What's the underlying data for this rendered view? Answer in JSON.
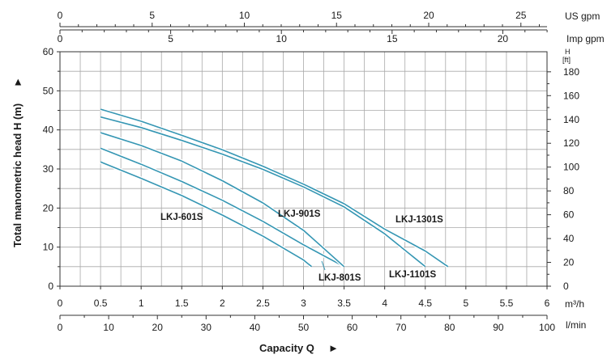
{
  "chart_data": {
    "type": "line",
    "title": "",
    "xlabel": "Capacity Q",
    "ylabel": "Total manometric head H (m)",
    "axis_arrow": "►",
    "x_unit_primary": "m³/h",
    "x_unit_secondary": "l/min",
    "y_unit_right_top": "H",
    "y_unit_right": "[ft]",
    "top_axis_1_unit": "US gpm",
    "top_axis_2_unit": "Imp gpm",
    "xlim": [
      0,
      6
    ],
    "ylim": [
      0,
      60
    ],
    "x_ticks": [
      "0",
      "0.5",
      "1",
      "1.5",
      "2",
      "2.5",
      "3",
      "3.5",
      "4",
      "4.5",
      "5",
      "5.5",
      "6"
    ],
    "lmin_ticks": [
      "0",
      "10",
      "20",
      "30",
      "40",
      "50",
      "60",
      "70",
      "80",
      "90",
      "100"
    ],
    "y_ticks": [
      "0",
      "10",
      "20",
      "30",
      "40",
      "50",
      "60"
    ],
    "ft_ticks": [
      "0",
      "20",
      "40",
      "60",
      "80",
      "100",
      "120",
      "140",
      "160",
      "180"
    ],
    "usgpm_ticks": [
      "0",
      "5",
      "10",
      "15",
      "20",
      "25"
    ],
    "impgpm_ticks": [
      "0",
      "5",
      "10",
      "15",
      "20"
    ],
    "grid": true,
    "series": [
      {
        "name": "LKJ-601S",
        "x": [
          0.5,
          1.0,
          1.5,
          2.0,
          2.5,
          3.0,
          3.1
        ],
        "y": [
          31.8,
          27.6,
          23.2,
          18.2,
          12.8,
          6.7,
          5.0
        ]
      },
      {
        "name": "LKJ-801S",
        "x": [
          0.5,
          1.0,
          1.5,
          2.0,
          2.5,
          3.0,
          3.5
        ],
        "y": [
          35.3,
          31.2,
          26.8,
          22.0,
          16.6,
          10.6,
          5.0
        ]
      },
      {
        "name": "LKJ-901S",
        "x": [
          0.5,
          1.0,
          1.5,
          2.0,
          2.5,
          3.0,
          3.5
        ],
        "y": [
          39.3,
          36.0,
          32.0,
          27.0,
          21.3,
          14.3,
          5.0
        ]
      },
      {
        "name": "LKJ-1101S",
        "x": [
          0.5,
          1.0,
          1.5,
          2.0,
          2.5,
          3.0,
          3.5,
          4.0,
          4.5
        ],
        "y": [
          43.3,
          40.6,
          37.3,
          33.8,
          29.9,
          25.4,
          20.3,
          13.4,
          5.0
        ]
      },
      {
        "name": "LKJ-1301S",
        "x": [
          0.5,
          1.0,
          1.5,
          2.0,
          2.5,
          3.0,
          3.5,
          4.0,
          4.5,
          4.78
        ],
        "y": [
          45.3,
          42.2,
          38.6,
          34.9,
          30.7,
          26.1,
          21.1,
          14.6,
          9.0,
          5.0
        ]
      }
    ],
    "line_color": "#3596b3"
  }
}
